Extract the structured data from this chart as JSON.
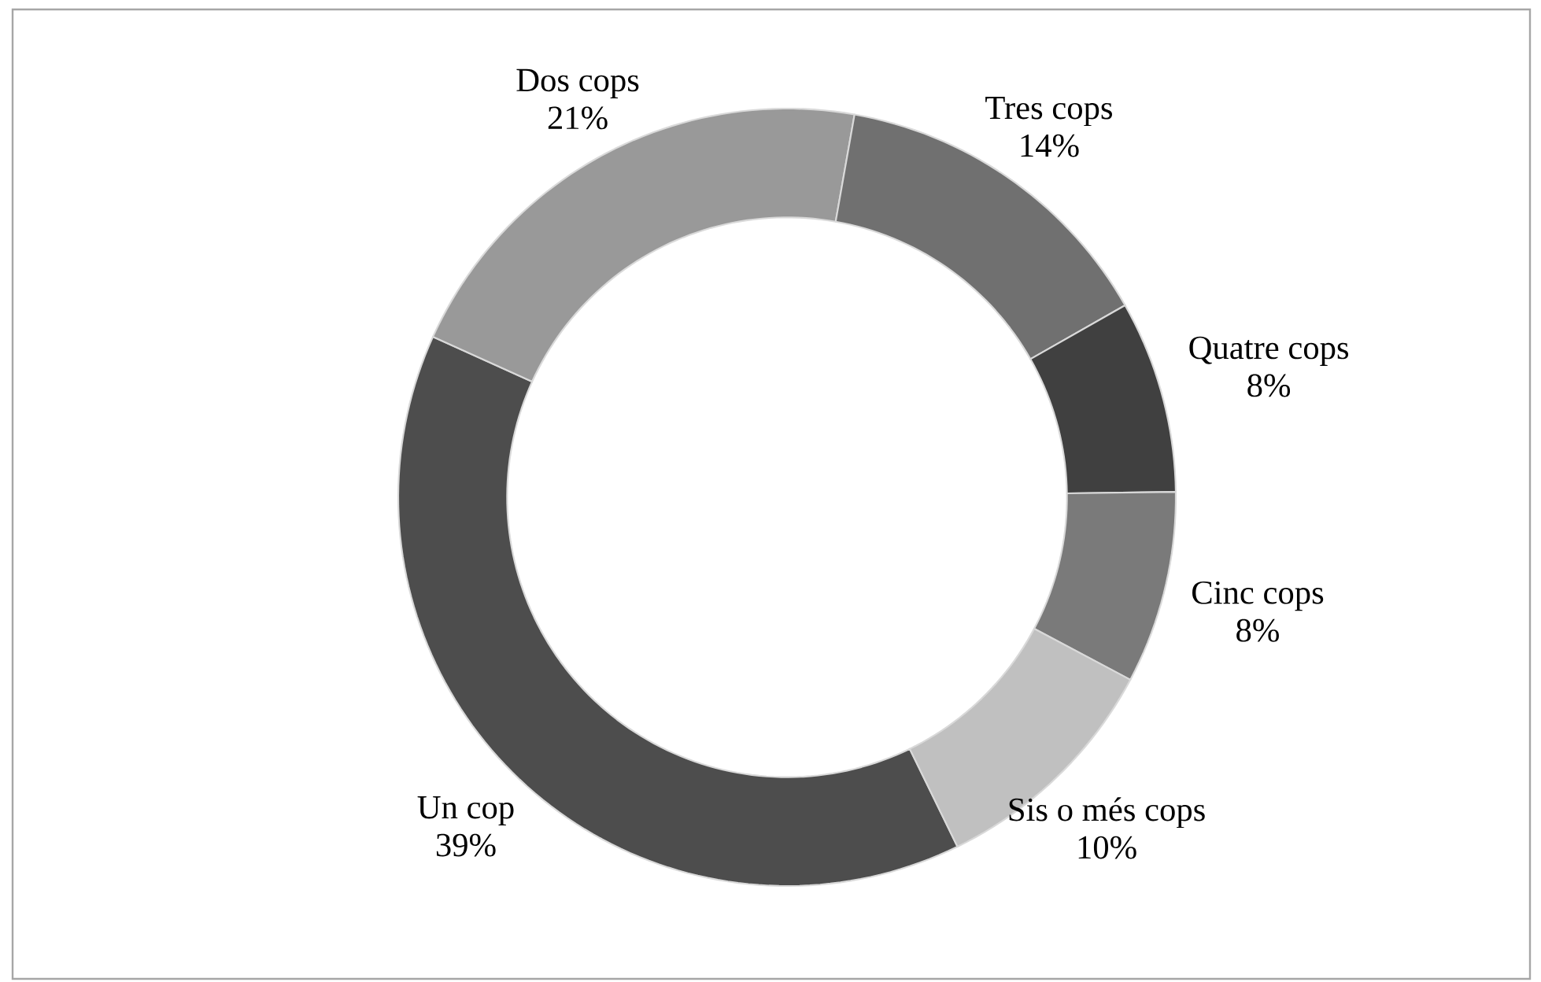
{
  "chart_data": {
    "type": "donut",
    "categories": [
      "Un cop",
      "Dos cops",
      "Tres cops",
      "Quatre cops",
      "Cinc cops",
      "Sis o més cops"
    ],
    "values": [
      39,
      21,
      14,
      8,
      8,
      10
    ],
    "colors": [
      "#4d4d4d",
      "#999999",
      "#707070",
      "#404040",
      "#7a7a7a",
      "#c0c0c0"
    ],
    "value_labels": [
      "39%",
      "21%",
      "14%",
      "8%",
      "8%",
      "10%"
    ]
  }
}
